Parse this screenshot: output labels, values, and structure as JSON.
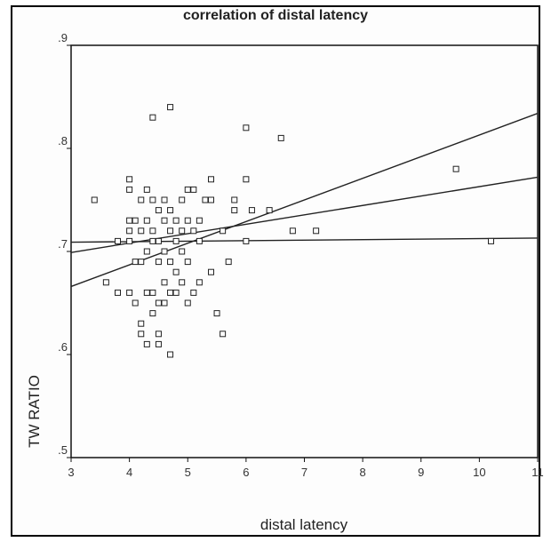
{
  "chart_data": {
    "type": "scatter",
    "title": "correlation of distal latency",
    "xlabel": "distal latency",
    "ylabel": "TW RATIO",
    "xlim": [
      3,
      11
    ],
    "ylim": [
      0.5,
      0.9
    ],
    "xticks": [
      "3",
      "4",
      "5",
      "6",
      "7",
      "8",
      "9",
      "10",
      "11"
    ],
    "yticks": [
      ".5",
      ".6",
      ".7",
      ".8",
      ".9"
    ],
    "grid": false,
    "points": [
      {
        "x": 3.4,
        "y": 0.75
      },
      {
        "x": 3.6,
        "y": 0.67
      },
      {
        "x": 3.8,
        "y": 0.71
      },
      {
        "x": 3.8,
        "y": 0.66
      },
      {
        "x": 4.0,
        "y": 0.77
      },
      {
        "x": 4.0,
        "y": 0.76
      },
      {
        "x": 4.0,
        "y": 0.73
      },
      {
        "x": 4.0,
        "y": 0.72
      },
      {
        "x": 4.0,
        "y": 0.71
      },
      {
        "x": 4.0,
        "y": 0.66
      },
      {
        "x": 4.1,
        "y": 0.73
      },
      {
        "x": 4.1,
        "y": 0.69
      },
      {
        "x": 4.1,
        "y": 0.65
      },
      {
        "x": 4.2,
        "y": 0.75
      },
      {
        "x": 4.2,
        "y": 0.72
      },
      {
        "x": 4.2,
        "y": 0.69
      },
      {
        "x": 4.2,
        "y": 0.63
      },
      {
        "x": 4.2,
        "y": 0.62
      },
      {
        "x": 4.3,
        "y": 0.76
      },
      {
        "x": 4.3,
        "y": 0.73
      },
      {
        "x": 4.3,
        "y": 0.7
      },
      {
        "x": 4.3,
        "y": 0.66
      },
      {
        "x": 4.3,
        "y": 0.61
      },
      {
        "x": 4.4,
        "y": 0.83
      },
      {
        "x": 4.4,
        "y": 0.75
      },
      {
        "x": 4.4,
        "y": 0.72
      },
      {
        "x": 4.4,
        "y": 0.71
      },
      {
        "x": 4.4,
        "y": 0.66
      },
      {
        "x": 4.4,
        "y": 0.64
      },
      {
        "x": 4.5,
        "y": 0.74
      },
      {
        "x": 4.5,
        "y": 0.71
      },
      {
        "x": 4.5,
        "y": 0.69
      },
      {
        "x": 4.5,
        "y": 0.65
      },
      {
        "x": 4.5,
        "y": 0.62
      },
      {
        "x": 4.5,
        "y": 0.61
      },
      {
        "x": 4.6,
        "y": 0.75
      },
      {
        "x": 4.6,
        "y": 0.73
      },
      {
        "x": 4.6,
        "y": 0.7
      },
      {
        "x": 4.6,
        "y": 0.67
      },
      {
        "x": 4.6,
        "y": 0.65
      },
      {
        "x": 4.7,
        "y": 0.84
      },
      {
        "x": 4.7,
        "y": 0.74
      },
      {
        "x": 4.7,
        "y": 0.72
      },
      {
        "x": 4.7,
        "y": 0.69
      },
      {
        "x": 4.7,
        "y": 0.66
      },
      {
        "x": 4.7,
        "y": 0.6
      },
      {
        "x": 4.8,
        "y": 0.73
      },
      {
        "x": 4.8,
        "y": 0.71
      },
      {
        "x": 4.8,
        "y": 0.68
      },
      {
        "x": 4.8,
        "y": 0.66
      },
      {
        "x": 4.9,
        "y": 0.75
      },
      {
        "x": 4.9,
        "y": 0.72
      },
      {
        "x": 4.9,
        "y": 0.7
      },
      {
        "x": 4.9,
        "y": 0.67
      },
      {
        "x": 5.0,
        "y": 0.76
      },
      {
        "x": 5.0,
        "y": 0.73
      },
      {
        "x": 5.0,
        "y": 0.69
      },
      {
        "x": 5.0,
        "y": 0.65
      },
      {
        "x": 5.1,
        "y": 0.76
      },
      {
        "x": 5.1,
        "y": 0.72
      },
      {
        "x": 5.1,
        "y": 0.66
      },
      {
        "x": 5.2,
        "y": 0.73
      },
      {
        "x": 5.2,
        "y": 0.71
      },
      {
        "x": 5.2,
        "y": 0.67
      },
      {
        "x": 5.3,
        "y": 0.75
      },
      {
        "x": 5.4,
        "y": 0.77
      },
      {
        "x": 5.4,
        "y": 0.75
      },
      {
        "x": 5.4,
        "y": 0.68
      },
      {
        "x": 5.5,
        "y": 0.64
      },
      {
        "x": 5.6,
        "y": 0.72
      },
      {
        "x": 5.6,
        "y": 0.62
      },
      {
        "x": 5.7,
        "y": 0.69
      },
      {
        "x": 5.8,
        "y": 0.75
      },
      {
        "x": 5.8,
        "y": 0.74
      },
      {
        "x": 6.0,
        "y": 0.82
      },
      {
        "x": 6.0,
        "y": 0.77
      },
      {
        "x": 6.0,
        "y": 0.71
      },
      {
        "x": 6.1,
        "y": 0.74
      },
      {
        "x": 6.4,
        "y": 0.74
      },
      {
        "x": 6.6,
        "y": 0.81
      },
      {
        "x": 6.8,
        "y": 0.72
      },
      {
        "x": 7.2,
        "y": 0.72
      },
      {
        "x": 9.6,
        "y": 0.78
      },
      {
        "x": 10.2,
        "y": 0.71
      }
    ],
    "lines": [
      {
        "x": [
          3,
          11
        ],
        "y": [
          0.699,
          0.772
        ]
      },
      {
        "x": [
          3,
          11
        ],
        "y": [
          0.666,
          0.834
        ]
      },
      {
        "x": [
          3,
          11
        ],
        "y": [
          0.709,
          0.713
        ]
      }
    ]
  }
}
